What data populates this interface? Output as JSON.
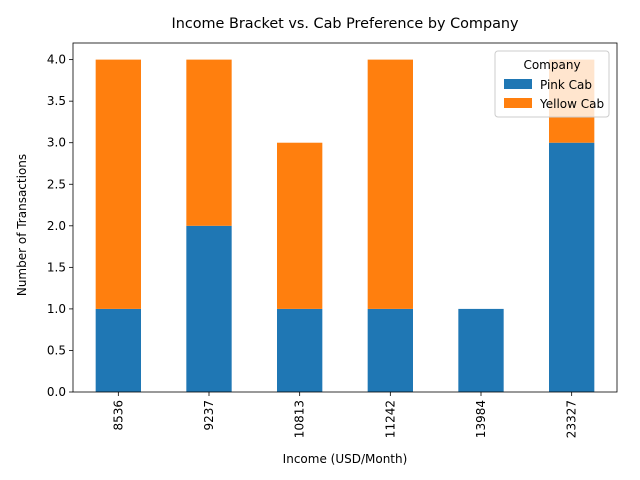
{
  "chart_data": {
    "type": "bar",
    "stacked": true,
    "title": "Income Bracket vs. Cab Preference by Company",
    "xlabel": "Income (USD/Month)",
    "ylabel": "Number of Transactions",
    "categories": [
      "8536",
      "9237",
      "10813",
      "11242",
      "13984",
      "23327"
    ],
    "series": [
      {
        "name": "Pink Cab",
        "color": "#1f77b4",
        "values": [
          1,
          2,
          1,
          1,
          1,
          3
        ]
      },
      {
        "name": "Yellow Cab",
        "color": "#ff7f0e",
        "values": [
          3,
          2,
          2,
          3,
          0,
          1
        ]
      }
    ],
    "ylim": [
      0,
      4.2
    ],
    "yticks": [
      "0.0",
      "0.5",
      "1.0",
      "1.5",
      "2.0",
      "2.5",
      "3.0",
      "3.5",
      "4.0"
    ],
    "grid": false,
    "legend": {
      "title": "Company",
      "position": "top-right"
    }
  }
}
